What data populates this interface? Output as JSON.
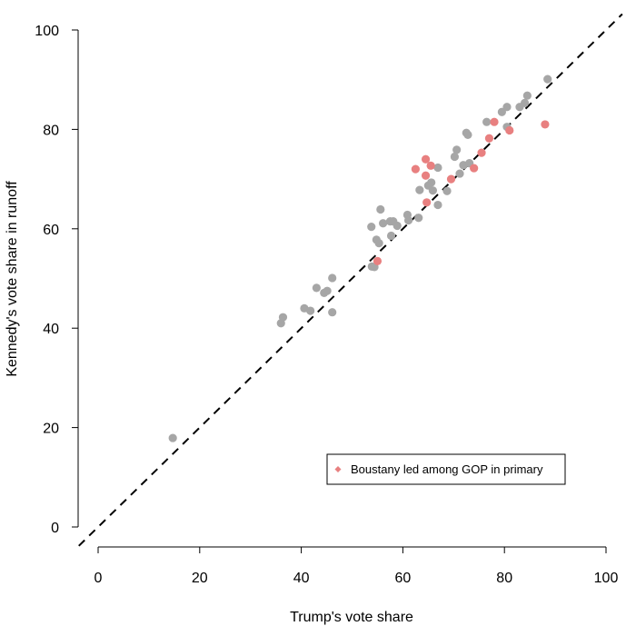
{
  "chart_data": {
    "type": "scatter",
    "title": "",
    "xlabel": "Trump's vote share",
    "ylabel": "Kennedy's vote share in runoff",
    "xlim": [
      0,
      100
    ],
    "ylim": [
      0,
      100
    ],
    "xticks": [
      "0",
      "20",
      "40",
      "60",
      "80",
      "100"
    ],
    "yticks": [
      "0",
      "20",
      "40",
      "60",
      "80",
      "100"
    ],
    "grid": false,
    "reference_line": "y = x (dashed)",
    "legend": {
      "position": "bottom-right",
      "entries": [
        "Boustany led among GOP in primary"
      ]
    },
    "colors": {
      "gray": "#a6a6a6",
      "red": "#e88080"
    },
    "series": [
      {
        "name": "",
        "color": "gray",
        "points": [
          [
            14.7,
            17.9
          ],
          [
            36.0,
            41.0
          ],
          [
            36.4,
            42.2
          ],
          [
            40.6,
            44.0
          ],
          [
            41.8,
            43.5
          ],
          [
            43.0,
            48.1
          ],
          [
            44.5,
            47.1
          ],
          [
            45.1,
            47.5
          ],
          [
            46.1,
            50.1
          ],
          [
            46.1,
            43.2
          ],
          [
            53.9,
            52.4
          ],
          [
            54.4,
            52.3
          ],
          [
            53.8,
            60.4
          ],
          [
            54.8,
            57.8
          ],
          [
            55.3,
            57.1
          ],
          [
            55.6,
            63.9
          ],
          [
            56.1,
            61.1
          ],
          [
            57.5,
            61.5
          ],
          [
            58.1,
            61.5
          ],
          [
            57.7,
            58.6
          ],
          [
            58.9,
            60.6
          ],
          [
            60.9,
            62.8
          ],
          [
            61.1,
            61.7
          ],
          [
            63.3,
            67.8
          ],
          [
            63.1,
            62.2
          ],
          [
            65.0,
            68.7
          ],
          [
            65.6,
            69.3
          ],
          [
            65.9,
            67.7
          ],
          [
            66.9,
            72.3
          ],
          [
            66.9,
            64.8
          ],
          [
            68.7,
            67.6
          ],
          [
            70.2,
            74.5
          ],
          [
            70.6,
            75.9
          ],
          [
            71.2,
            71.1
          ],
          [
            71.9,
            72.8
          ],
          [
            72.5,
            79.3
          ],
          [
            72.8,
            78.9
          ],
          [
            73.1,
            73.2
          ],
          [
            76.5,
            81.5
          ],
          [
            79.5,
            83.5
          ],
          [
            80.5,
            80.5
          ],
          [
            80.5,
            84.5
          ],
          [
            83.0,
            84.5
          ],
          [
            84.0,
            85.3
          ],
          [
            84.5,
            86.8
          ],
          [
            88.5,
            90.1
          ]
        ]
      },
      {
        "name": "Boustany led among GOP in primary",
        "color": "red",
        "points": [
          [
            55.0,
            53.5
          ],
          [
            62.5,
            72.0
          ],
          [
            64.5,
            70.7
          ],
          [
            64.5,
            74.0
          ],
          [
            65.5,
            72.7
          ],
          [
            64.7,
            65.3
          ],
          [
            69.5,
            70.0
          ],
          [
            74.0,
            72.2
          ],
          [
            75.5,
            75.3
          ],
          [
            77.0,
            78.2
          ],
          [
            78.0,
            81.5
          ],
          [
            81.0,
            79.8
          ],
          [
            88.0,
            81.0
          ]
        ]
      }
    ]
  }
}
